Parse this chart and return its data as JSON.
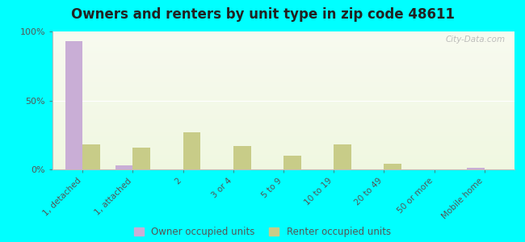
{
  "title": "Owners and renters by unit type in zip code 48611",
  "categories": [
    "1, detached",
    "1, attached",
    "2",
    "3 or 4",
    "5 to 9",
    "10 to 19",
    "20 to 49",
    "50 or more",
    "Mobile home"
  ],
  "owner_values": [
    93,
    3,
    0,
    0,
    0,
    0,
    0,
    0,
    1
  ],
  "renter_values": [
    18,
    16,
    27,
    17,
    10,
    18,
    4,
    0,
    0
  ],
  "owner_color": "#c9aed6",
  "renter_color": "#c8cc88",
  "outer_bg": "#00ffff",
  "ylim": [
    0,
    100
  ],
  "yticks": [
    0,
    50,
    100
  ],
  "ytick_labels": [
    "0%",
    "50%",
    "100%"
  ],
  "title_fontsize": 12,
  "legend_owner": "Owner occupied units",
  "legend_renter": "Renter occupied units",
  "bar_width": 0.35,
  "watermark": "City-Data.com"
}
